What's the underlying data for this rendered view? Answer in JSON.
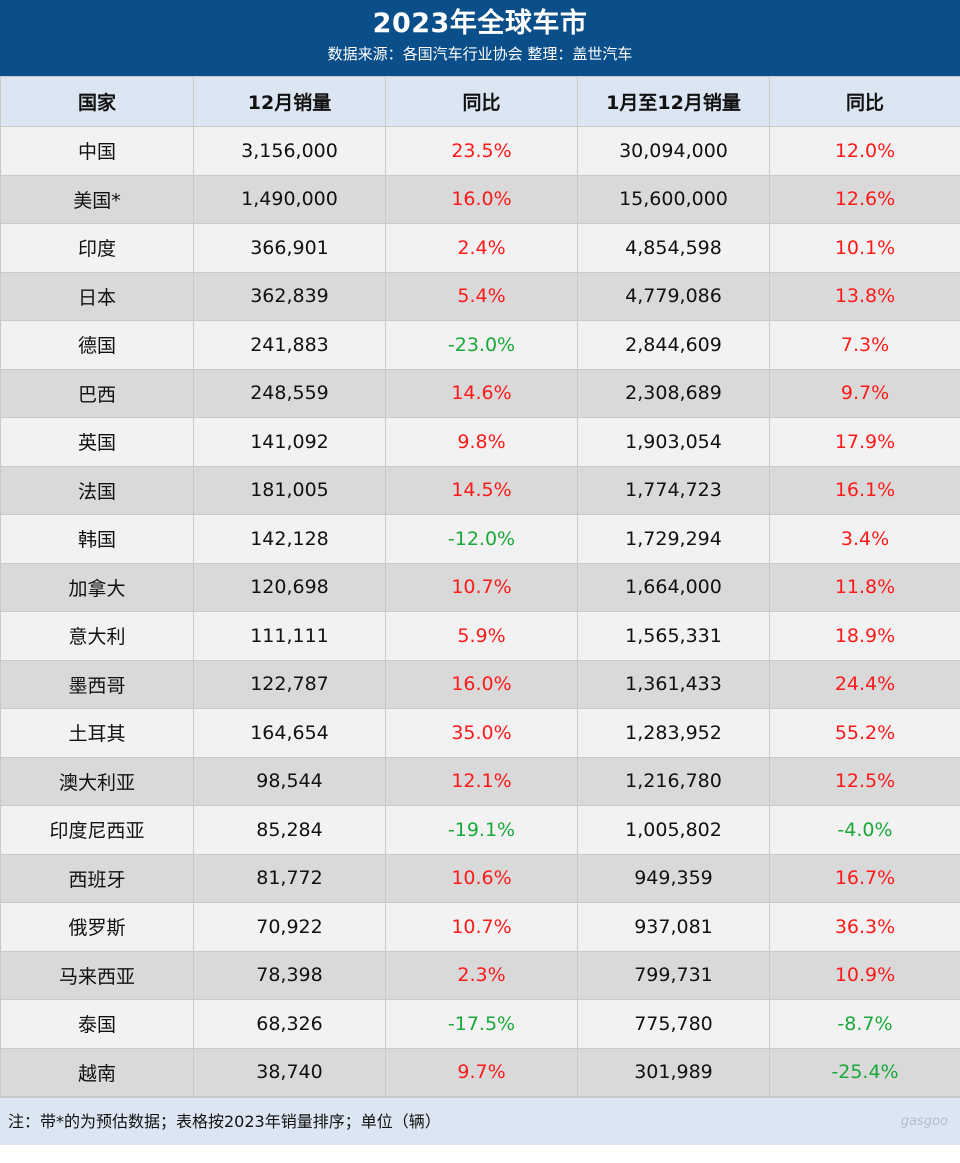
{
  "header": {
    "title": "2023年全球车市",
    "subtitle": "数据来源：各国汽车行业协会 整理：盖世汽车"
  },
  "table": {
    "columns": [
      "国家",
      "12月销量",
      "同比",
      "1月至12月销量",
      "同比"
    ],
    "rows": [
      {
        "country": "中国",
        "dec_sales": "3,156,000",
        "dec_yoy": "23.5%",
        "ytd_sales": "30,094,000",
        "ytd_yoy": "12.0%"
      },
      {
        "country": "美国*",
        "dec_sales": "1,490,000",
        "dec_yoy": "16.0%",
        "ytd_sales": "15,600,000",
        "ytd_yoy": "12.6%"
      },
      {
        "country": "印度",
        "dec_sales": "366,901",
        "dec_yoy": "2.4%",
        "ytd_sales": "4,854,598",
        "ytd_yoy": "10.1%"
      },
      {
        "country": "日本",
        "dec_sales": "362,839",
        "dec_yoy": "5.4%",
        "ytd_sales": "4,779,086",
        "ytd_yoy": "13.8%"
      },
      {
        "country": "德国",
        "dec_sales": "241,883",
        "dec_yoy": "-23.0%",
        "ytd_sales": "2,844,609",
        "ytd_yoy": "7.3%"
      },
      {
        "country": "巴西",
        "dec_sales": "248,559",
        "dec_yoy": "14.6%",
        "ytd_sales": "2,308,689",
        "ytd_yoy": "9.7%"
      },
      {
        "country": "英国",
        "dec_sales": "141,092",
        "dec_yoy": "9.8%",
        "ytd_sales": "1,903,054",
        "ytd_yoy": "17.9%"
      },
      {
        "country": "法国",
        "dec_sales": "181,005",
        "dec_yoy": "14.5%",
        "ytd_sales": "1,774,723",
        "ytd_yoy": "16.1%"
      },
      {
        "country": "韩国",
        "dec_sales": "142,128",
        "dec_yoy": "-12.0%",
        "ytd_sales": "1,729,294",
        "ytd_yoy": "3.4%"
      },
      {
        "country": "加拿大",
        "dec_sales": "120,698",
        "dec_yoy": "10.7%",
        "ytd_sales": "1,664,000",
        "ytd_yoy": "11.8%"
      },
      {
        "country": "意大利",
        "dec_sales": "111,111",
        "dec_yoy": "5.9%",
        "ytd_sales": "1,565,331",
        "ytd_yoy": "18.9%"
      },
      {
        "country": "墨西哥",
        "dec_sales": "122,787",
        "dec_yoy": "16.0%",
        "ytd_sales": "1,361,433",
        "ytd_yoy": "24.4%"
      },
      {
        "country": "土耳其",
        "dec_sales": "164,654",
        "dec_yoy": "35.0%",
        "ytd_sales": "1,283,952",
        "ytd_yoy": "55.2%"
      },
      {
        "country": "澳大利亚",
        "dec_sales": "98,544",
        "dec_yoy": "12.1%",
        "ytd_sales": "1,216,780",
        "ytd_yoy": "12.5%"
      },
      {
        "country": "印度尼西亚",
        "dec_sales": "85,284",
        "dec_yoy": "-19.1%",
        "ytd_sales": "1,005,802",
        "ytd_yoy": "-4.0%"
      },
      {
        "country": "西班牙",
        "dec_sales": "81,772",
        "dec_yoy": "10.6%",
        "ytd_sales": "949,359",
        "ytd_yoy": "16.7%"
      },
      {
        "country": "俄罗斯",
        "dec_sales": "70,922",
        "dec_yoy": "10.7%",
        "ytd_sales": "937,081",
        "ytd_yoy": "36.3%"
      },
      {
        "country": "马来西亚",
        "dec_sales": "78,398",
        "dec_yoy": "2.3%",
        "ytd_sales": "799,731",
        "ytd_yoy": "10.9%"
      },
      {
        "country": "泰国",
        "dec_sales": "68,326",
        "dec_yoy": "-17.5%",
        "ytd_sales": "775,780",
        "ytd_yoy": "-8.7%"
      },
      {
        "country": "越南",
        "dec_sales": "38,740",
        "dec_yoy": "9.7%",
        "ytd_sales": "301,989",
        "ytd_yoy": "-25.4%"
      }
    ]
  },
  "footer": {
    "note": "注：带*的为预估数据；表格按2023年销量排序；单位（辆）",
    "watermark": "gasgoo"
  },
  "colors": {
    "header_bg": "#0b4f8a",
    "positive": "#ff1a1a",
    "negative": "#1aa83a"
  }
}
